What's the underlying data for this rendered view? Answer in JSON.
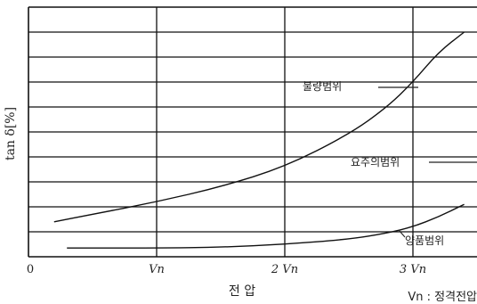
{
  "chart_data": {
    "type": "line",
    "title": "",
    "ylabel": "tan δ[%]",
    "xlabel": "전 압",
    "note": "Vn : 정격전압",
    "x_ticks": [
      "0",
      "Vn",
      "2 Vn",
      "3 Vn"
    ],
    "x_tick_values": [
      0,
      1,
      2,
      3
    ],
    "xlim": [
      0,
      3.5
    ],
    "ylim": [
      0,
      10
    ],
    "grid": true,
    "regions": [
      "불량범위",
      "요주의범위",
      "양품범위"
    ],
    "series": [
      {
        "x": [
          0.2,
          0.5,
          1.0,
          1.5,
          2.0,
          2.5,
          2.8,
          3.0,
          3.2,
          3.4
        ],
        "y": [
          1.4,
          1.7,
          2.2,
          2.8,
          3.6,
          4.9,
          6.0,
          7.0,
          8.2,
          9.0
        ]
      },
      {
        "x": [
          0.3,
          1.0,
          1.5,
          2.0,
          2.5,
          2.8,
          3.0,
          3.2,
          3.4
        ],
        "y": [
          0.35,
          0.35,
          0.38,
          0.5,
          0.7,
          0.95,
          1.2,
          1.6,
          2.1
        ]
      }
    ]
  }
}
